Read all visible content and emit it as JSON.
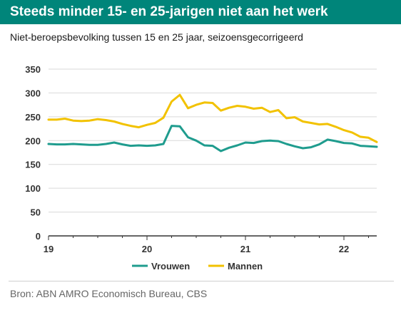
{
  "title": "Steeds minder 15- en 25-jarigen niet aan het werk",
  "subtitle": "Niet-beroepsbevolking tussen 15 en 25 jaar, seizoensgecorrigeerd",
  "source": "Bron: ABN AMRO Economisch Bureau, CBS",
  "colors": {
    "title_bar": "#00857a",
    "vrouwen": "#1f9c8e",
    "mannen": "#f2c200"
  },
  "chart_data": {
    "type": "line",
    "title": "Steeds minder 15- en 25-jarigen niet aan het werk",
    "subtitle": "Niet-beroepsbevolking tussen 15 en 25 jaar, seizoensgecorrigeerd",
    "xlabel": "",
    "ylabel": "",
    "ylim": [
      0,
      350
    ],
    "yticks": [
      "0",
      "50",
      "100",
      "150",
      "200",
      "250",
      "300",
      "350"
    ],
    "xticks": [
      "19",
      "20",
      "21",
      "22"
    ],
    "x_range": [
      "2019-01",
      "2022-05"
    ],
    "grid": "horizontal",
    "legend": "bottom",
    "x": [
      "2019-01",
      "2019-02",
      "2019-03",
      "2019-04",
      "2019-05",
      "2019-06",
      "2019-07",
      "2019-08",
      "2019-09",
      "2019-10",
      "2019-11",
      "2019-12",
      "2020-01",
      "2020-02",
      "2020-03",
      "2020-04",
      "2020-05",
      "2020-06",
      "2020-07",
      "2020-08",
      "2020-09",
      "2020-10",
      "2020-11",
      "2020-12",
      "2021-01",
      "2021-02",
      "2021-03",
      "2021-04",
      "2021-05",
      "2021-06",
      "2021-07",
      "2021-08",
      "2021-09",
      "2021-10",
      "2021-11",
      "2021-12",
      "2022-01",
      "2022-02",
      "2022-03",
      "2022-04",
      "2022-05"
    ],
    "series": [
      {
        "name": "Vrouwen",
        "values": [
          193,
          192,
          192,
          193,
          192,
          191,
          191,
          193,
          196,
          192,
          189,
          190,
          189,
          190,
          193,
          231,
          230,
          207,
          200,
          190,
          189,
          178,
          185,
          190,
          196,
          195,
          199,
          200,
          199,
          193,
          188,
          184,
          186,
          192,
          202,
          199,
          195,
          194,
          189,
          188,
          187
        ]
      },
      {
        "name": "Mannen",
        "values": [
          244,
          244,
          246,
          242,
          241,
          242,
          245,
          243,
          240,
          235,
          231,
          228,
          233,
          237,
          248,
          282,
          296,
          268,
          275,
          280,
          279,
          263,
          269,
          273,
          271,
          267,
          269,
          260,
          264,
          247,
          249,
          240,
          237,
          234,
          235,
          229,
          222,
          217,
          208,
          206,
          197
        ]
      }
    ]
  }
}
